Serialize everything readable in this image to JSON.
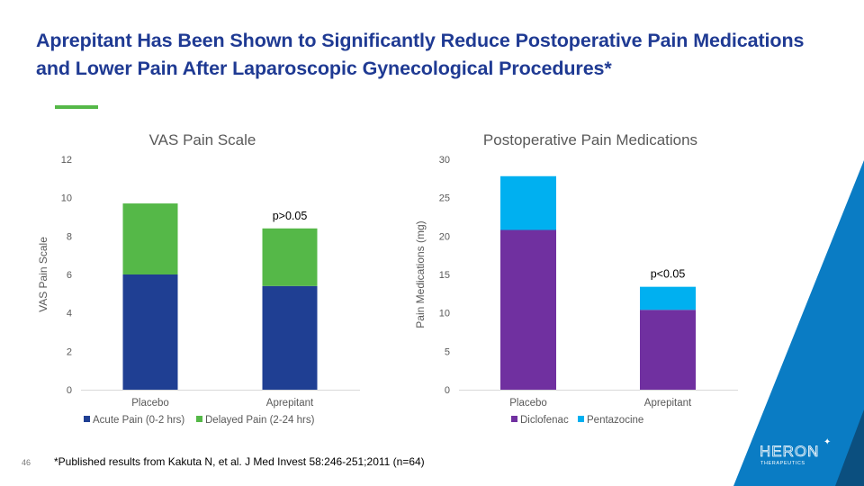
{
  "slide": {
    "title": "Aprepitant Has Been Shown to Significantly Reduce Postoperative Pain Medications and Lower Pain After Laparoscopic Gynecological Procedures*",
    "footnote": "*Published results from Kakuta N, et al. J Med Invest 58:246-251;2011 (n=64)",
    "page_number": "46",
    "logo": {
      "name": "HERON",
      "subtitle": "THERAPEUTICS",
      "mark": "✦"
    },
    "colors": {
      "title": "#1f3a93",
      "accent": "#55b848",
      "deco_blue": "#0a7cc4",
      "deco_navy": "#0b4f7f"
    }
  },
  "chart_data": [
    {
      "type": "bar",
      "stacked": true,
      "title": "VAS Pain Scale",
      "xlabel": "",
      "ylabel": "VAS Pain Scale",
      "categories": [
        "Placebo",
        "Aprepitant"
      ],
      "series": [
        {
          "name": "Acute Pain (0-2 hrs)",
          "color": "#1f3f93",
          "values": [
            6.0,
            5.4
          ]
        },
        {
          "name": "Delayed Pain (2-24 hrs)",
          "color": "#55b848",
          "values": [
            3.7,
            3.0
          ]
        }
      ],
      "ylim": [
        0,
        12
      ],
      "yticks": [
        0,
        2,
        4,
        6,
        8,
        10,
        12
      ],
      "grid": false,
      "legend": "bottom",
      "annotations": [
        {
          "category": "Aprepitant",
          "text": "p>0.05"
        }
      ]
    },
    {
      "type": "bar",
      "stacked": true,
      "title": "Postoperative Pain Medications",
      "xlabel": "",
      "ylabel": "Pain Medications (mg)",
      "categories": [
        "Placebo",
        "Aprepitant"
      ],
      "series": [
        {
          "name": "Diclofenac",
          "color": "#7030a0",
          "values": [
            20.8,
            10.4
          ]
        },
        {
          "name": "Pentazocine",
          "color": "#00b0f0",
          "values": [
            7.0,
            3.0
          ]
        }
      ],
      "ylim": [
        0,
        30
      ],
      "yticks": [
        0,
        5,
        10,
        15,
        20,
        25,
        30
      ],
      "grid": false,
      "legend": "bottom",
      "annotations": [
        {
          "category": "Aprepitant",
          "text": "p<0.05"
        }
      ]
    }
  ]
}
